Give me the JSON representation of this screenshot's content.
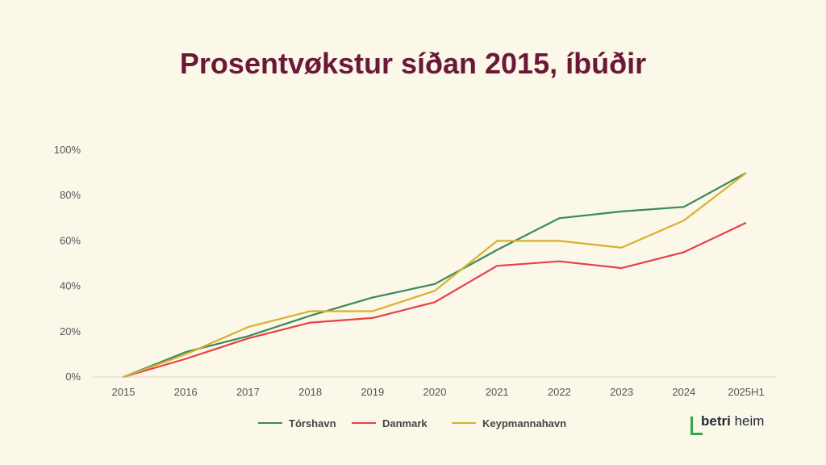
{
  "title": "Prosentvøkstur síðan 2015, íbúðir",
  "logo": {
    "bold": "betri",
    "light": "heim"
  },
  "colors": {
    "background": "#fbf7e9",
    "title": "#6b1836",
    "logo_accent": "#2ea84a"
  },
  "chart_data": {
    "type": "line",
    "title": "Prosentvøkstur síðan 2015, íbúðir",
    "xlabel": "",
    "ylabel": "",
    "ylim": [
      0,
      100
    ],
    "yticks": [
      "0%",
      "20%",
      "40%",
      "60%",
      "80%",
      "100%"
    ],
    "ytick_values": [
      0,
      20,
      40,
      60,
      80,
      100
    ],
    "categories": [
      "2015",
      "2016",
      "2017",
      "2018",
      "2019",
      "2020",
      "2021",
      "2022",
      "2023",
      "2024",
      "2025H1"
    ],
    "grid": false,
    "legend": "bottom",
    "series": [
      {
        "name": "Tórshavn",
        "color": "#3a8a58",
        "values": [
          0,
          11,
          18,
          27,
          35,
          41,
          56,
          70,
          73,
          75,
          90
        ]
      },
      {
        "name": "Danmark",
        "color": "#e84048",
        "values": [
          0,
          8,
          17,
          24,
          26,
          33,
          49,
          51,
          48,
          55,
          68
        ]
      },
      {
        "name": "Keypmannahavn",
        "color": "#d8b030",
        "values": [
          0,
          10,
          22,
          29,
          29,
          38,
          60,
          60,
          57,
          69,
          90
        ]
      }
    ]
  }
}
